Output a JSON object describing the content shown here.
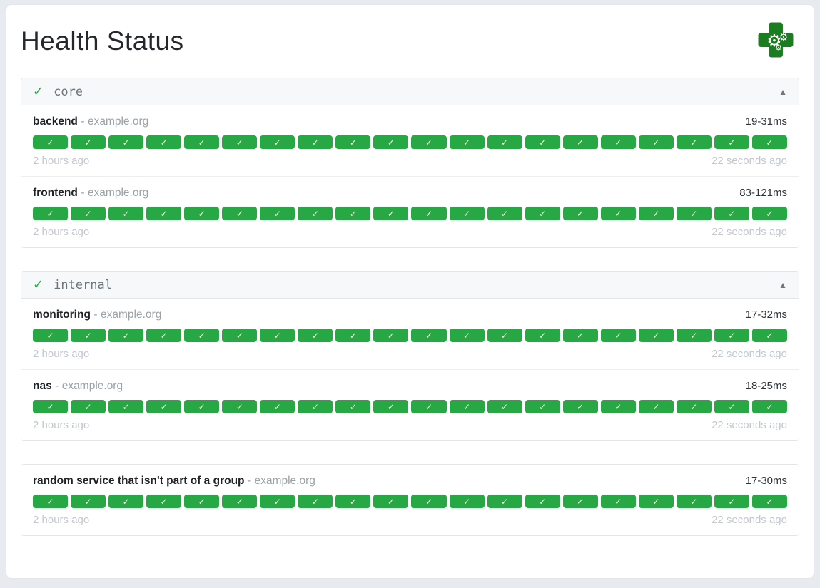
{
  "page": {
    "title": "Health Status"
  },
  "strings": {
    "separator": "-"
  },
  "icons": {
    "group_status_check": "✓",
    "collapse_arrow": "▲",
    "badge_check": "✓"
  },
  "colors": {
    "success_green": "#28a745",
    "logo_green": "#1c7c21"
  },
  "groups": [
    {
      "name": "core",
      "services": [
        {
          "name": "backend",
          "host": "example.org",
          "response_time": "19-31ms",
          "first_check": "2 hours ago",
          "last_check": "22 seconds ago",
          "checks": 20
        },
        {
          "name": "frontend",
          "host": "example.org",
          "response_time": "83-121ms",
          "first_check": "2 hours ago",
          "last_check": "22 seconds ago",
          "checks": 20
        }
      ]
    },
    {
      "name": "internal",
      "services": [
        {
          "name": "monitoring",
          "host": "example.org",
          "response_time": "17-32ms",
          "first_check": "2 hours ago",
          "last_check": "22 seconds ago",
          "checks": 20
        },
        {
          "name": "nas",
          "host": "example.org",
          "response_time": "18-25ms",
          "first_check": "2 hours ago",
          "last_check": "22 seconds ago",
          "checks": 20
        }
      ]
    },
    {
      "name": null,
      "services": [
        {
          "name": "random service that isn't part of a group",
          "host": "example.org",
          "response_time": "17-30ms",
          "first_check": "2 hours ago",
          "last_check": "22 seconds ago",
          "checks": 20
        }
      ]
    }
  ]
}
